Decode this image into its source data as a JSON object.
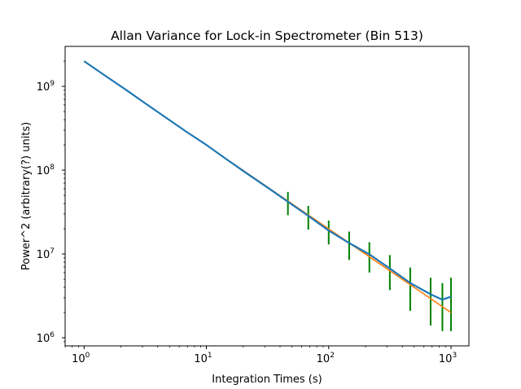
{
  "chart_data": {
    "type": "line",
    "title": "Allan Variance for Lock-in Spectrometer (Bin 513)",
    "xlabel": "Integration Times (s)",
    "ylabel": "Power^2 (arbitrary(?) units)",
    "xscale": "log",
    "yscale": "log",
    "xlim": [
      0.7,
      1400
    ],
    "ylim": [
      800000,
      3000000000
    ],
    "grid": false,
    "x_ticks": [
      {
        "value": 1,
        "mantissa": "10",
        "exponent": "0"
      },
      {
        "value": 10,
        "mantissa": "10",
        "exponent": "1"
      },
      {
        "value": 100,
        "mantissa": "10",
        "exponent": "2"
      },
      {
        "value": 1000,
        "mantissa": "10",
        "exponent": "3"
      }
    ],
    "y_ticks": [
      {
        "value": 1000000,
        "mantissa": "10",
        "exponent": "6"
      },
      {
        "value": 10000000,
        "mantissa": "10",
        "exponent": "7"
      },
      {
        "value": 100000000,
        "mantissa": "10",
        "exponent": "8"
      },
      {
        "value": 1000000000,
        "mantissa": "10",
        "exponent": "9"
      }
    ],
    "series": [
      {
        "color": "#1f77b4",
        "kind": "measured-with-errorbars",
        "errorbar_color": "#008000",
        "x": [
          1,
          1.5,
          2.2,
          3.2,
          4.6,
          6.8,
          10,
          14.7,
          21.5,
          31.6,
          46.4,
          68.1,
          100,
          147,
          215,
          316,
          464,
          681,
          850,
          1000
        ],
        "y": [
          2000000000,
          1330000000,
          910000000,
          620000000,
          430000000,
          290000000,
          200000000,
          134000000,
          91000000,
          62000000,
          42000000,
          28500000,
          19000000,
          13500000,
          9900000,
          6700000,
          4500000,
          3300000,
          2850000,
          3100000
        ],
        "yerr_lower": [
          0,
          0,
          0,
          0,
          0,
          0,
          0,
          0,
          0,
          0,
          13000000,
          9000000,
          6000000,
          5000000,
          3900000,
          3000000,
          2400000,
          1900000,
          1650000,
          1900000
        ],
        "yerr_upper": [
          0,
          0,
          0,
          0,
          0,
          0,
          0,
          0,
          0,
          0,
          13000000,
          9000000,
          6000000,
          5000000,
          3900000,
          3000000,
          2400000,
          1900000,
          1650000,
          2100000
        ]
      },
      {
        "color": "#ff7f0e",
        "kind": "fit",
        "x": [
          15,
          1000
        ],
        "y": [
          132000000,
          2000000
        ]
      }
    ]
  }
}
